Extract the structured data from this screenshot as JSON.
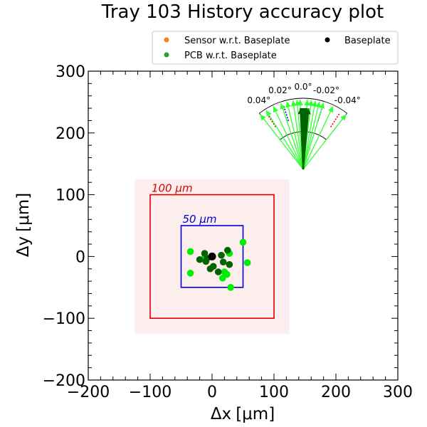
{
  "chart_data": {
    "type": "scatter",
    "title": "Tray 103 History accuracy plot",
    "xlabel_main": "Δx",
    "xlabel_unit": "[μm]",
    "ylabel_main": "Δy",
    "ylabel_unit": "[μm]",
    "xlim": [
      -200,
      300
    ],
    "ylim": [
      -200,
      300
    ],
    "xticks": [
      -200,
      -100,
      0,
      100,
      200,
      300
    ],
    "yticks": [
      -200,
      -100,
      0,
      100,
      200,
      300
    ],
    "xtick_labels": [
      "−200",
      "−100",
      "0",
      "100",
      "200",
      "300"
    ],
    "ytick_labels": [
      "−200",
      "−100",
      "0",
      "100",
      "200",
      "300"
    ],
    "grid": false,
    "legend_position": "top",
    "legend": [
      {
        "label": "Sensor w.r.t. Baseplate",
        "color": "#ff7f0e"
      },
      {
        "label": "PCB w.r.t. Baseplate",
        "color": "#2ca02c"
      },
      {
        "label": "Baseplate",
        "color": "#000000"
      }
    ],
    "regions": [
      {
        "label": "",
        "half_width": 125,
        "fill": "#fdeeee"
      },
      {
        "label": "100 μm",
        "half_width": 100,
        "color": "#e00000"
      },
      {
        "label": "50 μm",
        "half_width": 50,
        "color": "#0000dd"
      }
    ],
    "series": [
      {
        "color": "#00ee00",
        "points": [
          [
            -35,
            8
          ],
          [
            -35,
            -27
          ],
          [
            -12,
            -2
          ],
          [
            20,
            -25
          ],
          [
            28,
            5
          ],
          [
            50,
            23
          ],
          [
            57,
            -10
          ],
          [
            17,
            -35
          ],
          [
            24,
            -29
          ],
          [
            30,
            -50
          ]
        ]
      },
      {
        "color": "#006400",
        "points": [
          [
            -20,
            -5
          ],
          [
            -12,
            5
          ],
          [
            -8,
            -3
          ],
          [
            -3,
            -20
          ],
          [
            2,
            -16
          ],
          [
            15,
            2
          ],
          [
            18,
            -9
          ],
          [
            25,
            10
          ],
          [
            28,
            -13
          ],
          [
            10,
            -25
          ],
          [
            -10,
            -8
          ]
        ]
      },
      {
        "color": "#000000",
        "points": [
          [
            0,
            0
          ]
        ]
      }
    ],
    "angle_inset": {
      "tick_labels": [
        "0.04°",
        "0.02°",
        "0.0°",
        "-0.02°",
        "-0.04°"
      ],
      "tick_values": [
        0.04,
        0.02,
        0.0,
        -0.02,
        -0.04
      ],
      "bright_arrow_angles": [
        0.045,
        0.038,
        0.03,
        0.022,
        0.016,
        0.01,
        0.006,
        0.003,
        -0.004,
        -0.008,
        -0.012,
        -0.016,
        -0.02,
        -0.03,
        -0.045
      ],
      "dark_arrow_angles": [
        0.003,
        0.001,
        -0.001,
        -0.002,
        -0.003,
        -0.004,
        0.0,
        0.002,
        -0.006
      ],
      "bright_color": "#33ff33",
      "dark_color": "#006400"
    }
  }
}
